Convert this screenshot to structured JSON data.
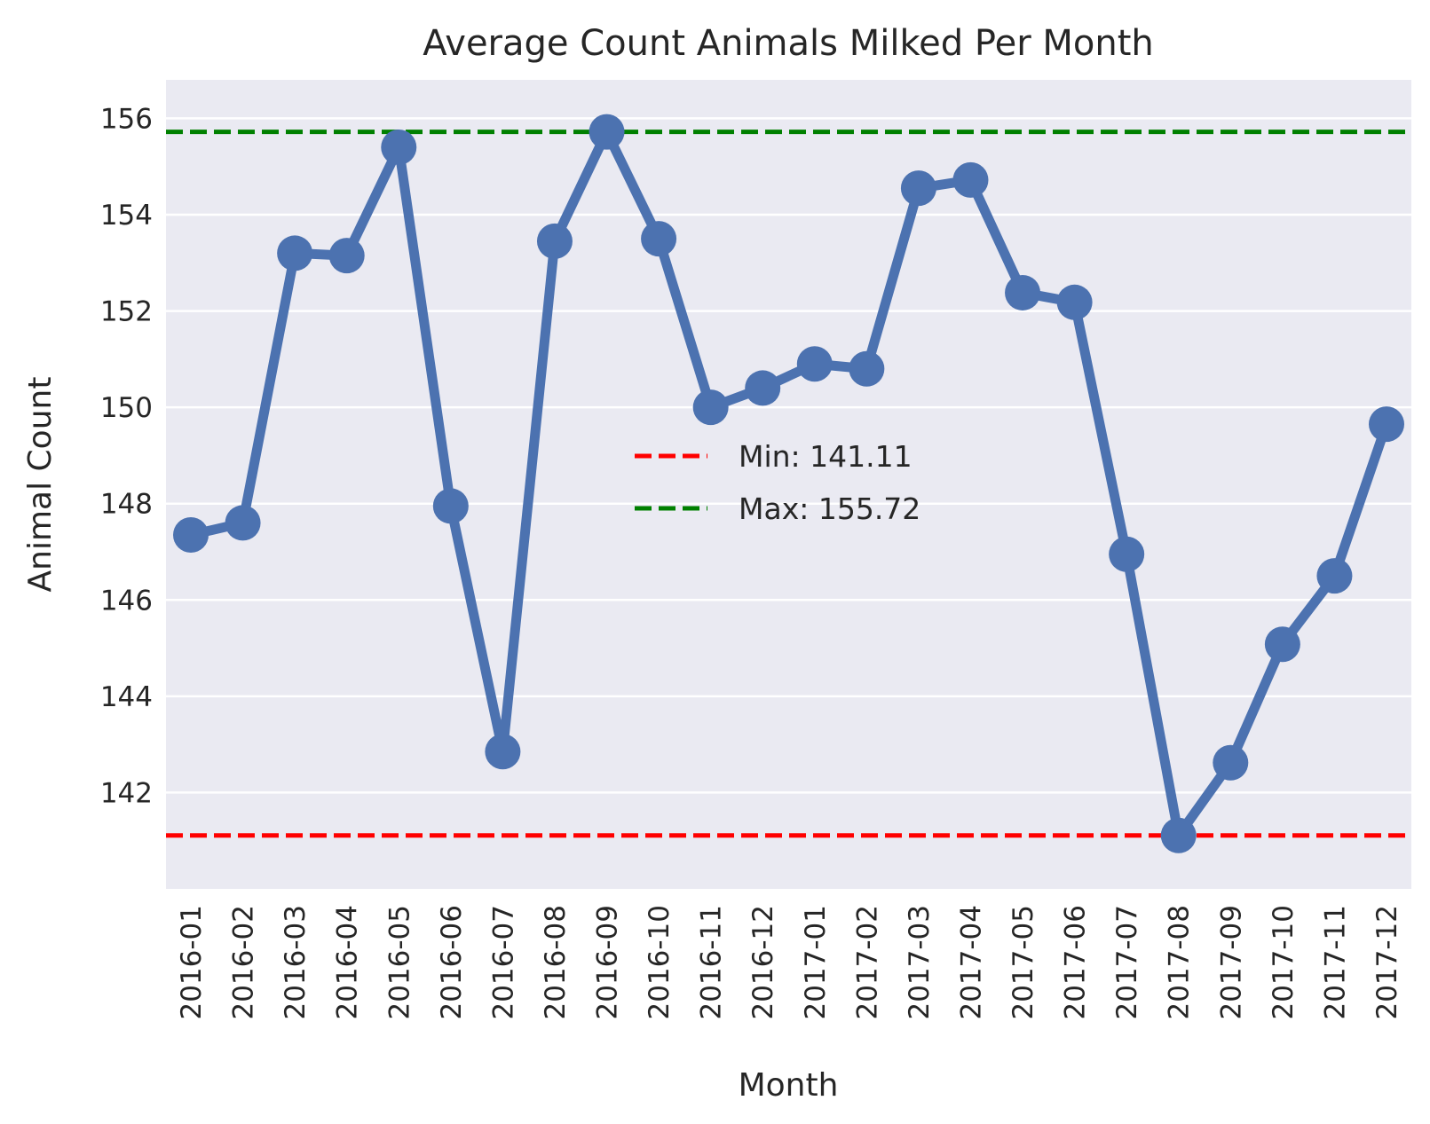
{
  "chart_data": {
    "type": "line",
    "title": "Average Count Animals Milked Per Month",
    "xlabel": "Month",
    "ylabel": "Animal Count",
    "categories": [
      "2016-01",
      "2016-02",
      "2016-03",
      "2016-04",
      "2016-05",
      "2016-06",
      "2016-07",
      "2016-08",
      "2016-09",
      "2016-10",
      "2016-11",
      "2016-12",
      "2017-01",
      "2017-02",
      "2017-03",
      "2017-04",
      "2017-05",
      "2017-06",
      "2017-07",
      "2017-08",
      "2017-09",
      "2017-10",
      "2017-11",
      "2017-12"
    ],
    "series": [
      {
        "values": [
          147.35,
          147.6,
          153.2,
          153.15,
          155.4,
          147.95,
          142.85,
          153.45,
          155.72,
          153.5,
          150.0,
          150.4,
          150.9,
          150.8,
          154.55,
          154.72,
          152.38,
          152.18,
          146.95,
          141.11,
          142.62,
          145.08,
          146.5,
          149.65
        ],
        "color": "#4c72b0"
      }
    ],
    "reference_lines": [
      {
        "label": "Min: 141.11",
        "value": 141.11,
        "color": "#ff0000",
        "style": "dashed"
      },
      {
        "label": "Max: 155.72",
        "value": 155.72,
        "color": "#008000",
        "style": "dashed"
      }
    ],
    "ylim": [
      140.0,
      156.8
    ],
    "yticks": [
      142,
      144,
      146,
      148,
      150,
      152,
      154,
      156
    ],
    "grid": true,
    "legend_position": "center",
    "background_color": "#eaeaf2"
  }
}
